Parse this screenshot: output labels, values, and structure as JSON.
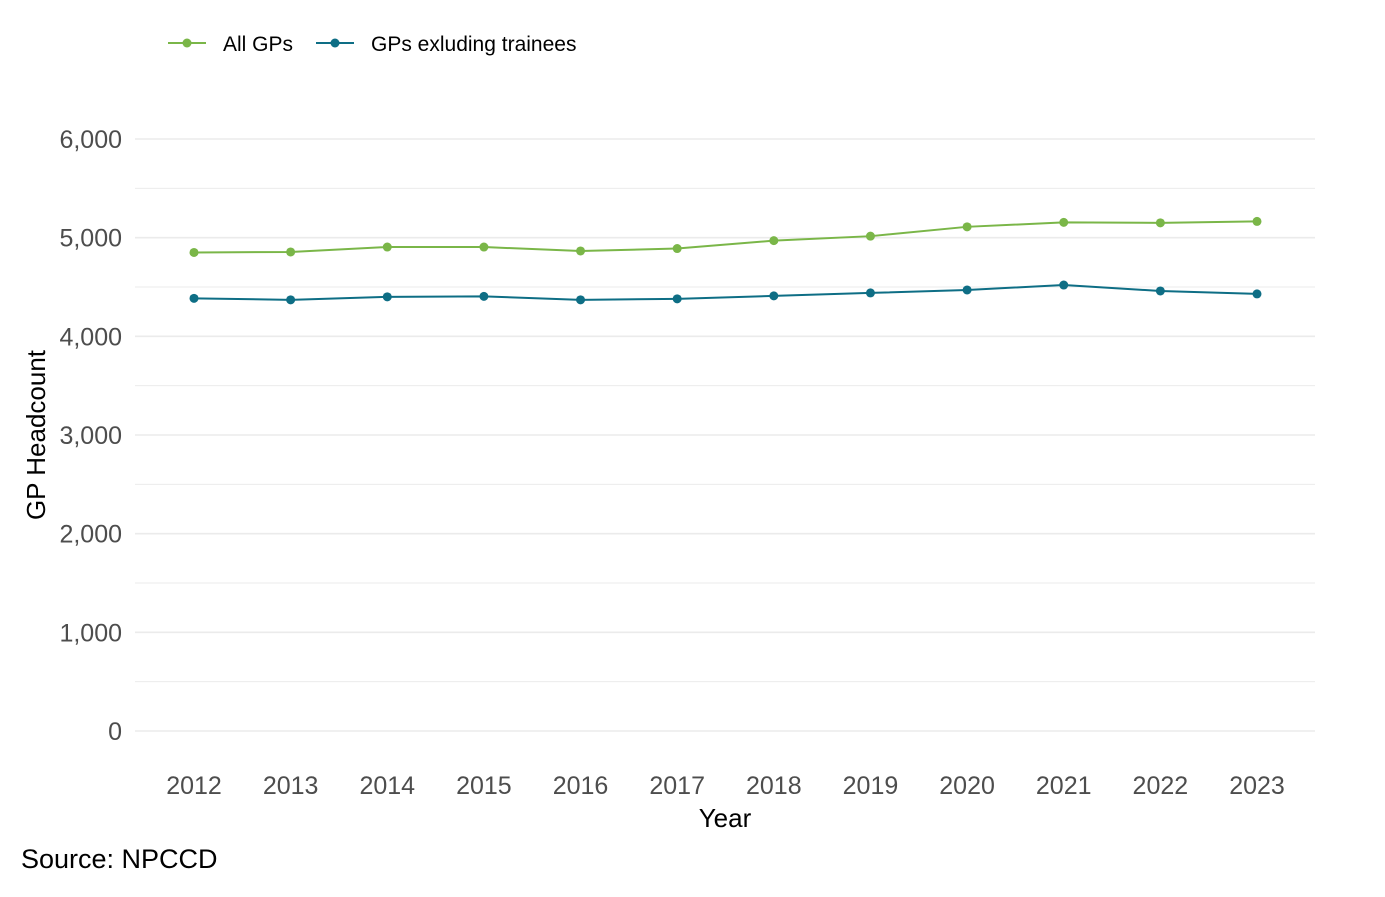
{
  "chart_data": {
    "type": "line",
    "title": "",
    "xlabel": "Year",
    "ylabel": "GP Headcount",
    "x": [
      "2012",
      "2013",
      "2014",
      "2015",
      "2016",
      "2017",
      "2018",
      "2019",
      "2020",
      "2021",
      "2022",
      "2023"
    ],
    "ylim": [
      0,
      6000
    ],
    "yticks": [
      0,
      1000,
      2000,
      3000,
      4000,
      5000,
      6000
    ],
    "ytick_labels": [
      "0",
      "1,000",
      "2,000",
      "3,000",
      "4,000",
      "5,000",
      "6,000"
    ],
    "grid": true,
    "legend_position": "top-left",
    "series": [
      {
        "name": "All GPs",
        "color": "#7ab648",
        "values": [
          4850,
          4855,
          4905,
          4905,
          4865,
          4890,
          4970,
          5015,
          5110,
          5155,
          5150,
          5165
        ]
      },
      {
        "name": "GPs exluding trainees",
        "color": "#0e6e85",
        "values": [
          4385,
          4370,
          4400,
          4405,
          4370,
          4380,
          4410,
          4440,
          4470,
          4520,
          4460,
          4430
        ]
      }
    ]
  },
  "source": "Source: NPCCD"
}
